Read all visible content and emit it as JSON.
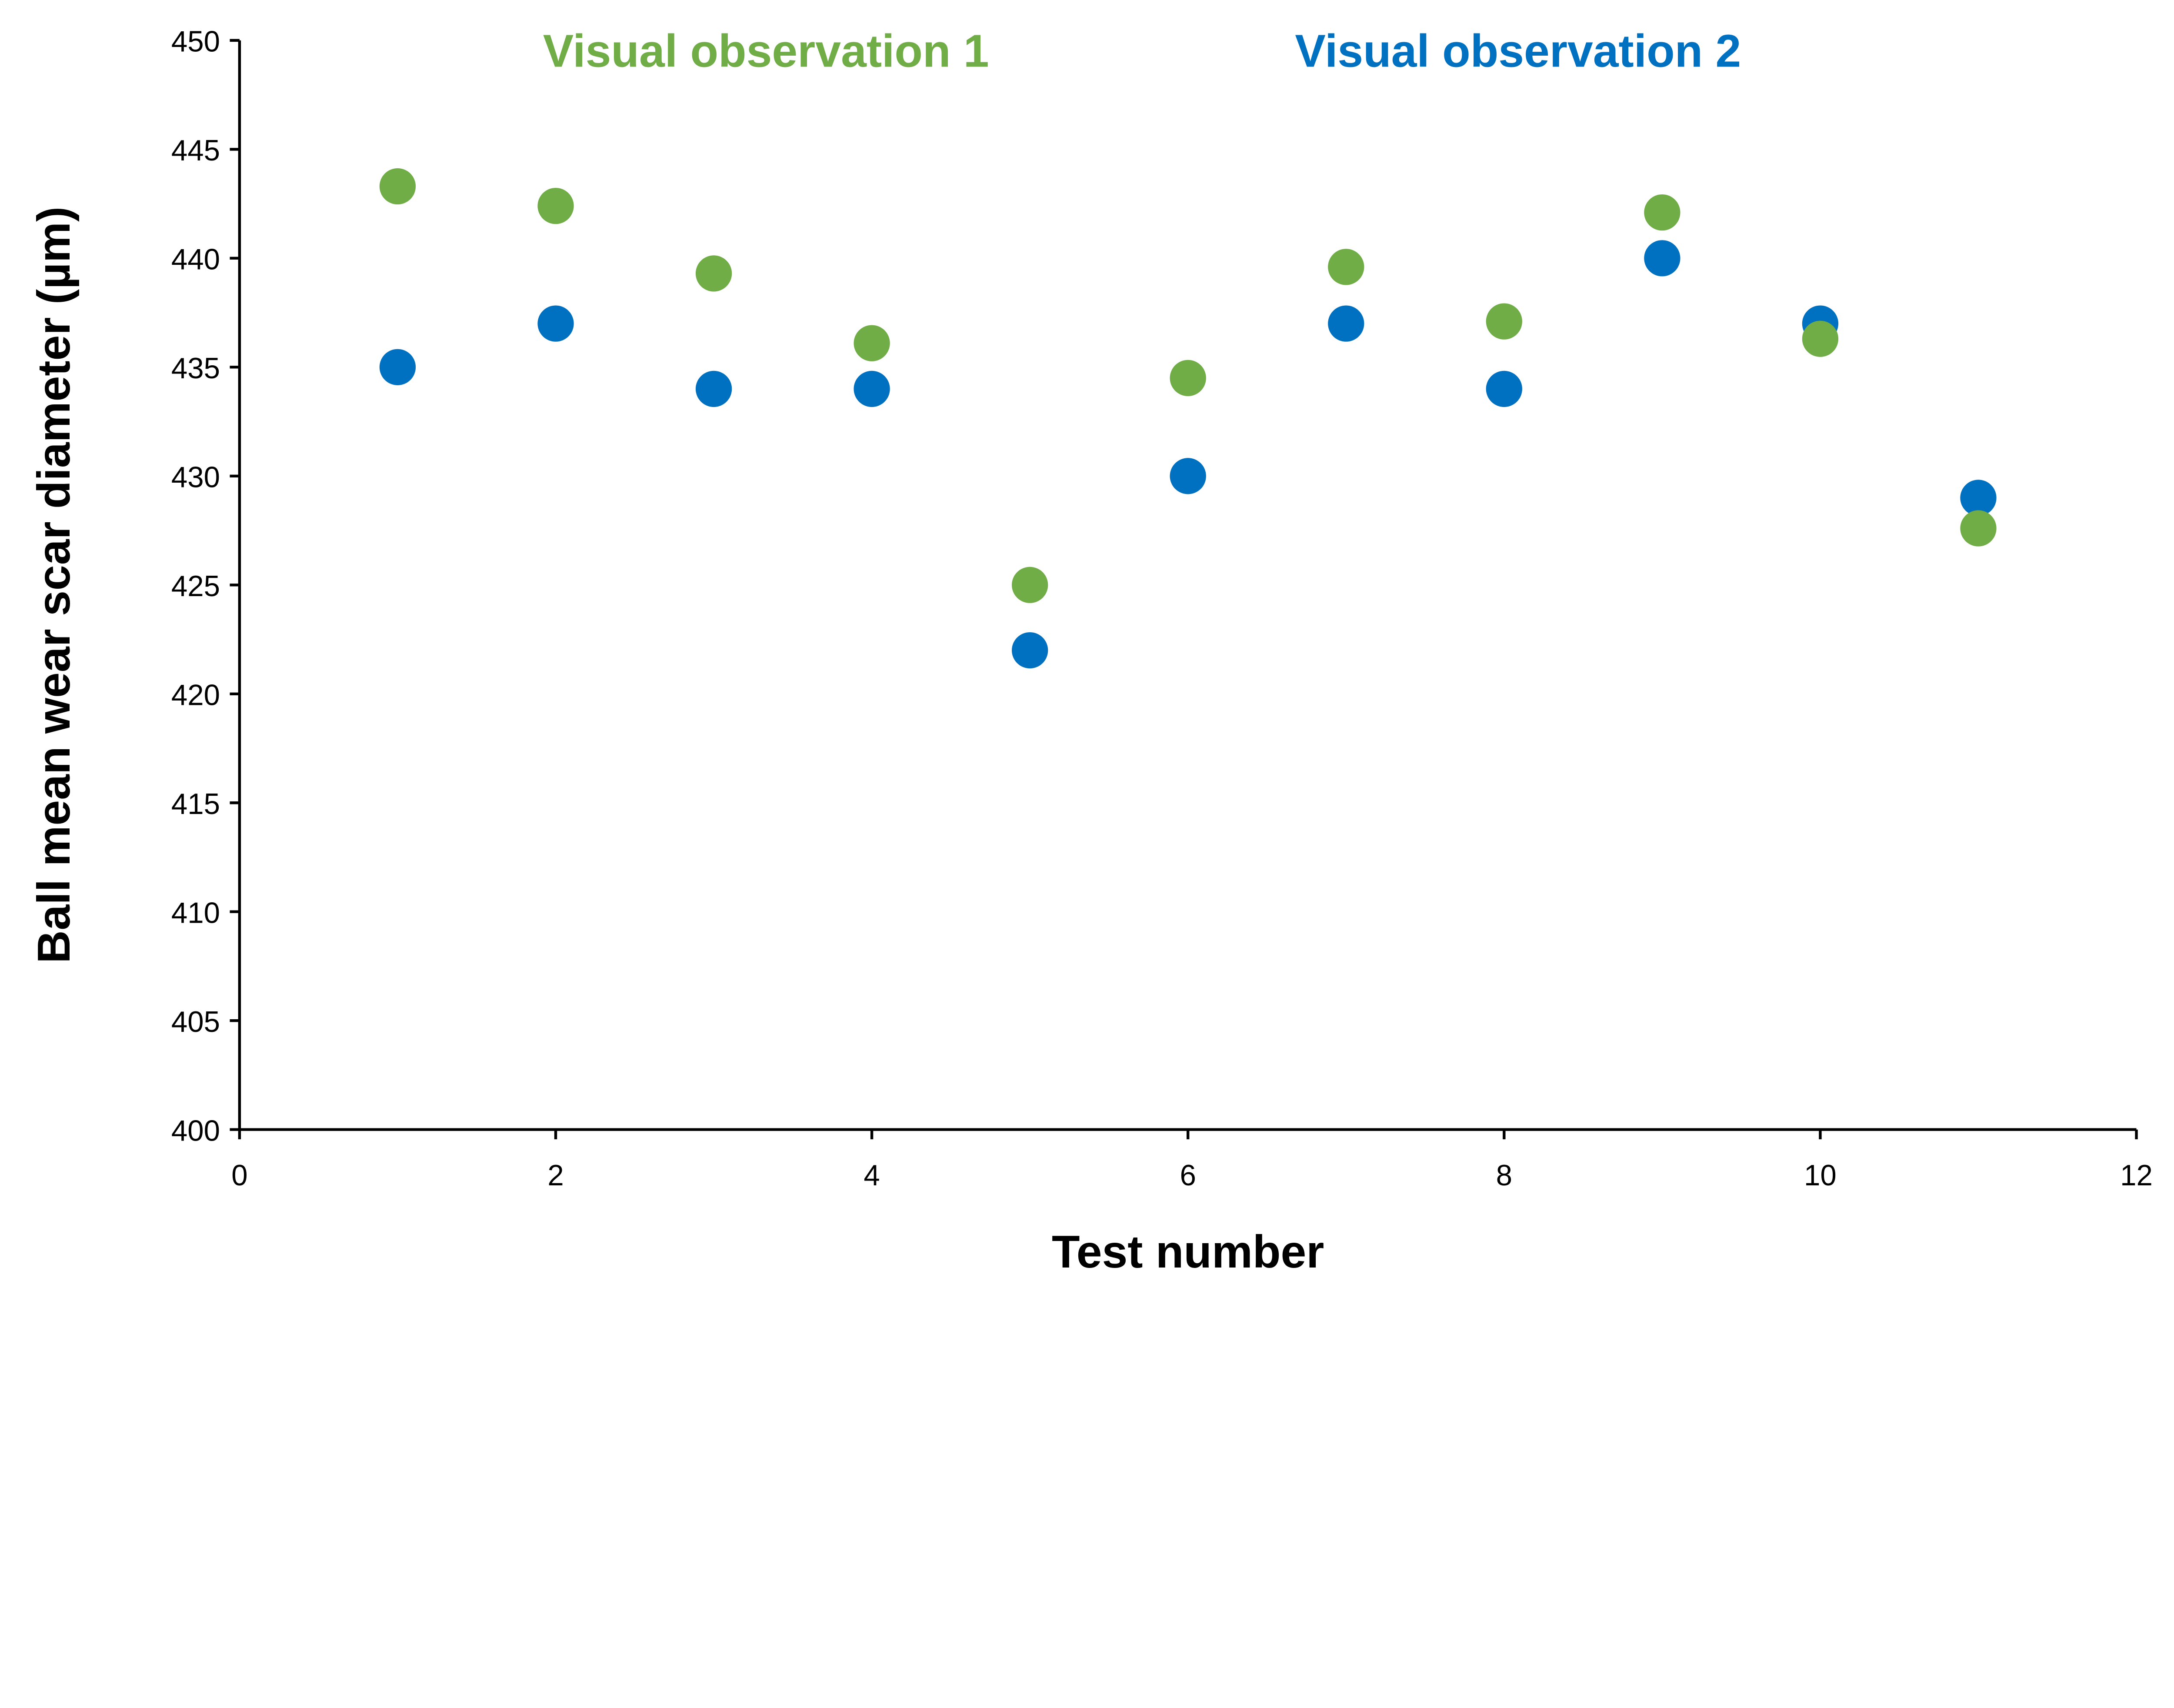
{
  "chart_data": {
    "type": "scatter",
    "title": "",
    "xlabel": "Test number",
    "ylabel": "Ball mean wear scar diameter (µm)",
    "xlim": [
      0,
      12
    ],
    "ylim": [
      400,
      450
    ],
    "xticks": [
      0,
      2,
      4,
      6,
      8,
      10,
      12
    ],
    "yticks": [
      400,
      405,
      410,
      415,
      420,
      425,
      430,
      435,
      440,
      445,
      450
    ],
    "grid": false,
    "legend_placement": "top",
    "series": [
      {
        "name": "Visual observation 1",
        "color": "#70AD47",
        "x": [
          1,
          2,
          3,
          4,
          5,
          6,
          7,
          8,
          9,
          10,
          11
        ],
        "y": [
          443.3,
          442.4,
          439.3,
          436.1,
          425.0,
          434.5,
          439.6,
          437.1,
          442.1,
          436.3,
          427.6
        ]
      },
      {
        "name": "Visual observation 2",
        "color": "#0070C0",
        "x": [
          1,
          2,
          3,
          4,
          5,
          6,
          7,
          8,
          9,
          10,
          11
        ],
        "y": [
          435,
          437,
          434,
          434,
          422,
          430,
          437,
          434,
          440,
          437,
          429
        ]
      }
    ]
  }
}
